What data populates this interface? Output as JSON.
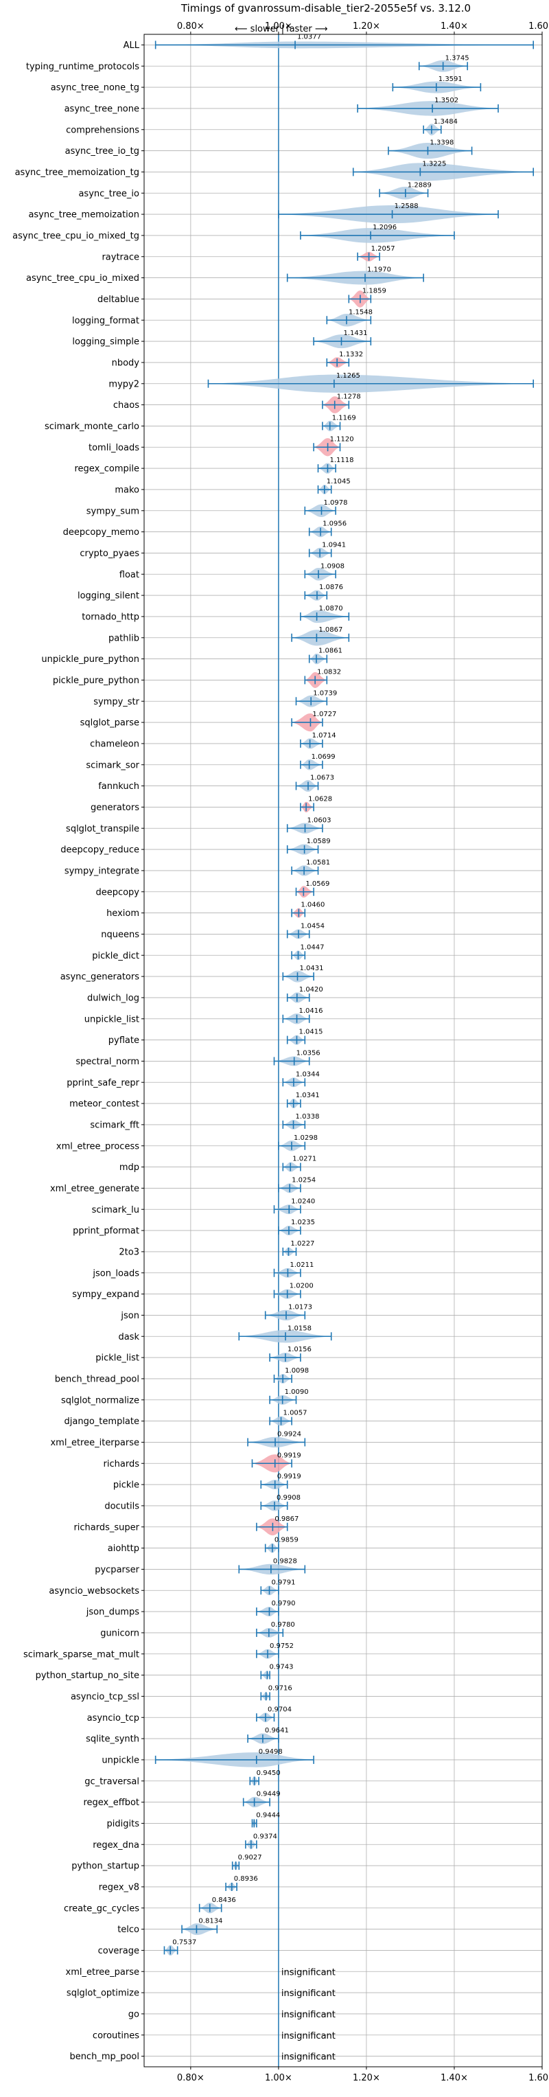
{
  "chart_data": {
    "type": "violin",
    "title": "Timings of gvanrossum-disable_tier2-2055e5f vs. 3.12.0",
    "subtitle_left": "⟵ slower",
    "subtitle_sep": "|",
    "subtitle_right": "faster ⟶",
    "x_range": [
      0.694,
      1.6
    ],
    "x_ticks": [
      {
        "value": 0.8,
        "label": "0.80×"
      },
      {
        "value": 1.0,
        "label": "1.00×"
      },
      {
        "value": 1.2,
        "label": "1.20×"
      },
      {
        "value": 1.4,
        "label": "1.40×"
      },
      {
        "value": 1.6,
        "label": "1.60×"
      }
    ],
    "reference_value": 1.0,
    "grid": true,
    "significance_colors": {
      "normal": "#1f77b4",
      "fill": "#b3cde3",
      "highlight": "#f4a6ae"
    },
    "insignificant_label": "insignificant",
    "benchmarks": [
      {
        "name": "ALL",
        "median": 1.0377,
        "label": "1.0377",
        "lo": 0.72,
        "hi": 1.58,
        "width": 0.32,
        "hl": false
      },
      {
        "name": "typing_runtime_protocols",
        "median": 1.3745,
        "label": "1.3745",
        "lo": 1.32,
        "hi": 1.43,
        "width": 0.55,
        "hl": false
      },
      {
        "name": "async_tree_none_tg",
        "median": 1.3591,
        "label": "1.3591",
        "lo": 1.26,
        "hi": 1.46,
        "width": 0.55,
        "hl": false
      },
      {
        "name": "async_tree_none",
        "median": 1.3502,
        "label": "1.3502",
        "lo": 1.18,
        "hi": 1.5,
        "width": 0.7,
        "hl": false
      },
      {
        "name": "comprehensions",
        "median": 1.3484,
        "label": "1.3484",
        "lo": 1.33,
        "hi": 1.37,
        "width": 0.55,
        "hl": false
      },
      {
        "name": "async_tree_io_tg",
        "median": 1.3398,
        "label": "1.3398",
        "lo": 1.25,
        "hi": 1.44,
        "width": 0.75,
        "hl": false
      },
      {
        "name": "async_tree_memoization_tg",
        "median": 1.3225,
        "label": "1.3225",
        "lo": 1.17,
        "hi": 1.58,
        "width": 0.85,
        "hl": false
      },
      {
        "name": "async_tree_io",
        "median": 1.2889,
        "label": "1.2889",
        "lo": 1.23,
        "hi": 1.34,
        "width": 0.6,
        "hl": false
      },
      {
        "name": "async_tree_memoization",
        "median": 1.2588,
        "label": "1.2588",
        "lo": 1.0,
        "hi": 1.5,
        "width": 0.85,
        "hl": false
      },
      {
        "name": "async_tree_cpu_io_mixed_tg",
        "median": 1.2096,
        "label": "1.2096",
        "lo": 1.05,
        "hi": 1.4,
        "width": 0.7,
        "hl": false
      },
      {
        "name": "raytrace",
        "median": 1.2057,
        "label": "1.2057",
        "lo": 1.18,
        "hi": 1.23,
        "width": 0.45,
        "hl": true
      },
      {
        "name": "async_tree_cpu_io_mixed",
        "median": 1.197,
        "label": "1.1970",
        "lo": 1.02,
        "hi": 1.33,
        "width": 0.65,
        "hl": false
      },
      {
        "name": "deltablue",
        "median": 1.1859,
        "label": "1.1859",
        "lo": 1.16,
        "hi": 1.21,
        "width": 0.8,
        "hl": true
      },
      {
        "name": "logging_format",
        "median": 1.1548,
        "label": "1.1548",
        "lo": 1.11,
        "hi": 1.21,
        "width": 0.6,
        "hl": false
      },
      {
        "name": "logging_simple",
        "median": 1.1431,
        "label": "1.1431",
        "lo": 1.08,
        "hi": 1.21,
        "width": 0.65,
        "hl": false
      },
      {
        "name": "nbody",
        "median": 1.1332,
        "label": "1.1332",
        "lo": 1.11,
        "hi": 1.16,
        "width": 0.5,
        "hl": true
      },
      {
        "name": "mypy2",
        "median": 1.1265,
        "label": "1.1265",
        "lo": 0.84,
        "hi": 1.58,
        "width": 0.85,
        "hl": false
      },
      {
        "name": "chaos",
        "median": 1.1278,
        "label": "1.1278",
        "lo": 1.1,
        "hi": 1.16,
        "width": 0.8,
        "hl": true
      },
      {
        "name": "scimark_monte_carlo",
        "median": 1.1169,
        "label": "1.1169",
        "lo": 1.1,
        "hi": 1.14,
        "width": 0.5,
        "hl": false
      },
      {
        "name": "tomli_loads",
        "median": 1.112,
        "label": "1.1120",
        "lo": 1.08,
        "hi": 1.14,
        "width": 0.85,
        "hl": true
      },
      {
        "name": "regex_compile",
        "median": 1.1118,
        "label": "1.1118",
        "lo": 1.09,
        "hi": 1.13,
        "width": 0.5,
        "hl": false
      },
      {
        "name": "mako",
        "median": 1.1045,
        "label": "1.1045",
        "lo": 1.09,
        "hi": 1.12,
        "width": 0.45,
        "hl": false
      },
      {
        "name": "sympy_sum",
        "median": 1.0978,
        "label": "1.0978",
        "lo": 1.06,
        "hi": 1.13,
        "width": 0.6,
        "hl": false
      },
      {
        "name": "deepcopy_memo",
        "median": 1.0956,
        "label": "1.0956",
        "lo": 1.07,
        "hi": 1.12,
        "width": 0.5,
        "hl": false
      },
      {
        "name": "crypto_pyaes",
        "median": 1.0941,
        "label": "1.0941",
        "lo": 1.07,
        "hi": 1.12,
        "width": 0.5,
        "hl": false
      },
      {
        "name": "float",
        "median": 1.0908,
        "label": "1.0908",
        "lo": 1.06,
        "hi": 1.13,
        "width": 0.6,
        "hl": false
      },
      {
        "name": "logging_silent",
        "median": 1.0876,
        "label": "1.0876",
        "lo": 1.06,
        "hi": 1.11,
        "width": 0.5,
        "hl": false
      },
      {
        "name": "tornado_http",
        "median": 1.087,
        "label": "1.0870",
        "lo": 1.05,
        "hi": 1.16,
        "width": 0.6,
        "hl": false
      },
      {
        "name": "pathlib",
        "median": 1.0867,
        "label": "1.0867",
        "lo": 1.03,
        "hi": 1.16,
        "width": 0.75,
        "hl": false
      },
      {
        "name": "unpickle_pure_python",
        "median": 1.0861,
        "label": "1.0861",
        "lo": 1.07,
        "hi": 1.11,
        "width": 0.5,
        "hl": false
      },
      {
        "name": "pickle_pure_python",
        "median": 1.0832,
        "label": "1.0832",
        "lo": 1.06,
        "hi": 1.11,
        "width": 0.75,
        "hl": true
      },
      {
        "name": "sympy_str",
        "median": 1.0739,
        "label": "1.0739",
        "lo": 1.04,
        "hi": 1.11,
        "width": 0.55,
        "hl": false
      },
      {
        "name": "sqlglot_parse",
        "median": 1.0727,
        "label": "1.0727",
        "lo": 1.03,
        "hi": 1.1,
        "width": 0.85,
        "hl": true
      },
      {
        "name": "chameleon",
        "median": 1.0714,
        "label": "1.0714",
        "lo": 1.05,
        "hi": 1.1,
        "width": 0.5,
        "hl": false
      },
      {
        "name": "scimark_sor",
        "median": 1.0699,
        "label": "1.0699",
        "lo": 1.05,
        "hi": 1.1,
        "width": 0.5,
        "hl": false
      },
      {
        "name": "fannkuch",
        "median": 1.0673,
        "label": "1.0673",
        "lo": 1.04,
        "hi": 1.09,
        "width": 0.55,
        "hl": false
      },
      {
        "name": "generators",
        "median": 1.0628,
        "label": "1.0628",
        "lo": 1.05,
        "hi": 1.08,
        "width": 0.5,
        "hl": true
      },
      {
        "name": "sqlglot_transpile",
        "median": 1.0603,
        "label": "1.0603",
        "lo": 1.02,
        "hi": 1.1,
        "width": 0.5,
        "hl": false
      },
      {
        "name": "deepcopy_reduce",
        "median": 1.0589,
        "label": "1.0589",
        "lo": 1.02,
        "hi": 1.09,
        "width": 0.5,
        "hl": false
      },
      {
        "name": "sympy_integrate",
        "median": 1.0581,
        "label": "1.0581",
        "lo": 1.03,
        "hi": 1.09,
        "width": 0.5,
        "hl": false
      },
      {
        "name": "deepcopy",
        "median": 1.0569,
        "label": "1.0569",
        "lo": 1.04,
        "hi": 1.08,
        "width": 0.55,
        "hl": true
      },
      {
        "name": "hexiom",
        "median": 1.046,
        "label": "1.0460",
        "lo": 1.03,
        "hi": 1.06,
        "width": 0.45,
        "hl": true
      },
      {
        "name": "nqueens",
        "median": 1.0454,
        "label": "1.0454",
        "lo": 1.02,
        "hi": 1.07,
        "width": 0.45,
        "hl": false
      },
      {
        "name": "pickle_dict",
        "median": 1.0447,
        "label": "1.0447",
        "lo": 1.03,
        "hi": 1.06,
        "width": 0.45,
        "hl": false
      },
      {
        "name": "async_generators",
        "median": 1.0431,
        "label": "1.0431",
        "lo": 1.01,
        "hi": 1.08,
        "width": 0.55,
        "hl": false
      },
      {
        "name": "dulwich_log",
        "median": 1.042,
        "label": "1.0420",
        "lo": 1.02,
        "hi": 1.07,
        "width": 0.5,
        "hl": false
      },
      {
        "name": "unpickle_list",
        "median": 1.0416,
        "label": "1.0416",
        "lo": 1.01,
        "hi": 1.07,
        "width": 0.5,
        "hl": false
      },
      {
        "name": "pyflate",
        "median": 1.0415,
        "label": "1.0415",
        "lo": 1.02,
        "hi": 1.06,
        "width": 0.45,
        "hl": false
      },
      {
        "name": "spectral_norm",
        "median": 1.0356,
        "label": "1.0356",
        "lo": 0.99,
        "hi": 1.07,
        "width": 0.45,
        "hl": false
      },
      {
        "name": "pprint_safe_repr",
        "median": 1.0344,
        "label": "1.0344",
        "lo": 1.01,
        "hi": 1.06,
        "width": 0.45,
        "hl": false
      },
      {
        "name": "meteor_contest",
        "median": 1.0341,
        "label": "1.0341",
        "lo": 1.02,
        "hi": 1.05,
        "width": 0.45,
        "hl": false
      },
      {
        "name": "scimark_fft",
        "median": 1.0338,
        "label": "1.0338",
        "lo": 1.01,
        "hi": 1.06,
        "width": 0.45,
        "hl": false
      },
      {
        "name": "xml_etree_process",
        "median": 1.0298,
        "label": "1.0298",
        "lo": 1.0,
        "hi": 1.06,
        "width": 0.5,
        "hl": false
      },
      {
        "name": "mdp",
        "median": 1.0271,
        "label": "1.0271",
        "lo": 1.01,
        "hi": 1.05,
        "width": 0.45,
        "hl": false
      },
      {
        "name": "xml_etree_generate",
        "median": 1.0254,
        "label": "1.0254",
        "lo": 1.0,
        "hi": 1.05,
        "width": 0.45,
        "hl": false
      },
      {
        "name": "scimark_lu",
        "median": 1.024,
        "label": "1.0240",
        "lo": 0.99,
        "hi": 1.05,
        "width": 0.45,
        "hl": false
      },
      {
        "name": "pprint_pformat",
        "median": 1.0235,
        "label": "1.0235",
        "lo": 1.0,
        "hi": 1.05,
        "width": 0.45,
        "hl": false
      },
      {
        "name": "2to3",
        "median": 1.0227,
        "label": "1.0227",
        "lo": 1.01,
        "hi": 1.04,
        "width": 0.4,
        "hl": false
      },
      {
        "name": "json_loads",
        "median": 1.0211,
        "label": "1.0211",
        "lo": 0.99,
        "hi": 1.05,
        "width": 0.45,
        "hl": false
      },
      {
        "name": "sympy_expand",
        "median": 1.02,
        "label": "1.0200",
        "lo": 0.99,
        "hi": 1.05,
        "width": 0.45,
        "hl": false
      },
      {
        "name": "json",
        "median": 1.0173,
        "label": "1.0173",
        "lo": 0.97,
        "hi": 1.06,
        "width": 0.5,
        "hl": false
      },
      {
        "name": "dask",
        "median": 1.0158,
        "label": "1.0158",
        "lo": 0.91,
        "hi": 1.12,
        "width": 0.6,
        "hl": false
      },
      {
        "name": "pickle_list",
        "median": 1.0156,
        "label": "1.0156",
        "lo": 0.98,
        "hi": 1.05,
        "width": 0.45,
        "hl": false
      },
      {
        "name": "bench_thread_pool",
        "median": 1.0098,
        "label": "1.0098",
        "lo": 0.99,
        "hi": 1.03,
        "width": 0.45,
        "hl": false
      },
      {
        "name": "sqlglot_normalize",
        "median": 1.009,
        "label": "1.0090",
        "lo": 0.98,
        "hi": 1.04,
        "width": 0.45,
        "hl": false
      },
      {
        "name": "django_template",
        "median": 1.0057,
        "label": "1.0057",
        "lo": 0.98,
        "hi": 1.03,
        "width": 0.45,
        "hl": false
      },
      {
        "name": "xml_etree_iterparse",
        "median": 0.9924,
        "label": "0.9924",
        "lo": 0.93,
        "hi": 1.06,
        "width": 0.5,
        "hl": false
      },
      {
        "name": "richards",
        "median": 0.9919,
        "label": "0.9919",
        "lo": 0.94,
        "hi": 1.03,
        "width": 0.85,
        "hl": true
      },
      {
        "name": "pickle",
        "median": 0.9919,
        "label": "0.9919",
        "lo": 0.96,
        "hi": 1.02,
        "width": 0.45,
        "hl": false
      },
      {
        "name": "docutils",
        "median": 0.9908,
        "label": "0.9908",
        "lo": 0.96,
        "hi": 1.02,
        "width": 0.5,
        "hl": false
      },
      {
        "name": "richards_super",
        "median": 0.9867,
        "label": "0.9867",
        "lo": 0.95,
        "hi": 1.02,
        "width": 0.8,
        "hl": true
      },
      {
        "name": "aiohttp",
        "median": 0.9859,
        "label": "0.9859",
        "lo": 0.97,
        "hi": 1.0,
        "width": 0.45,
        "hl": false
      },
      {
        "name": "pycparser",
        "median": 0.9828,
        "label": "0.9828",
        "lo": 0.91,
        "hi": 1.06,
        "width": 0.5,
        "hl": false
      },
      {
        "name": "asyncio_websockets",
        "median": 0.9791,
        "label": "0.9791",
        "lo": 0.96,
        "hi": 1.0,
        "width": 0.45,
        "hl": false
      },
      {
        "name": "json_dumps",
        "median": 0.979,
        "label": "0.9790",
        "lo": 0.95,
        "hi": 1.0,
        "width": 0.45,
        "hl": false
      },
      {
        "name": "gunicorn",
        "median": 0.978,
        "label": "0.9780",
        "lo": 0.95,
        "hi": 1.01,
        "width": 0.45,
        "hl": false
      },
      {
        "name": "scimark_sparse_mat_mult",
        "median": 0.9752,
        "label": "0.9752",
        "lo": 0.95,
        "hi": 1.0,
        "width": 0.45,
        "hl": false
      },
      {
        "name": "python_startup_no_site",
        "median": 0.9743,
        "label": "0.9743",
        "lo": 0.96,
        "hi": 0.98,
        "width": 0.4,
        "hl": false
      },
      {
        "name": "asyncio_tcp_ssl",
        "median": 0.9716,
        "label": "0.9716",
        "lo": 0.96,
        "hi": 0.98,
        "width": 0.4,
        "hl": false
      },
      {
        "name": "asyncio_tcp",
        "median": 0.9704,
        "label": "0.9704",
        "lo": 0.95,
        "hi": 0.99,
        "width": 0.45,
        "hl": false
      },
      {
        "name": "sqlite_synth",
        "median": 0.9641,
        "label": "0.9641",
        "lo": 0.93,
        "hi": 1.0,
        "width": 0.5,
        "hl": false
      },
      {
        "name": "unpickle",
        "median": 0.9498,
        "label": "0.9498",
        "lo": 0.72,
        "hi": 1.08,
        "width": 0.7,
        "hl": false
      },
      {
        "name": "gc_traversal",
        "median": 0.945,
        "label": "0.9450",
        "lo": 0.935,
        "hi": 0.955,
        "width": 0.45,
        "hl": false
      },
      {
        "name": "regex_effbot",
        "median": 0.9449,
        "label": "0.9449",
        "lo": 0.92,
        "hi": 0.98,
        "width": 0.5,
        "hl": false
      },
      {
        "name": "pidigits",
        "median": 0.9444,
        "label": "0.9444",
        "lo": 0.94,
        "hi": 0.95,
        "width": 0.4,
        "hl": false
      },
      {
        "name": "regex_dna",
        "median": 0.9374,
        "label": "0.9374",
        "lo": 0.925,
        "hi": 0.95,
        "width": 0.45,
        "hl": false
      },
      {
        "name": "python_startup",
        "median": 0.9027,
        "label": "0.9027",
        "lo": 0.895,
        "hi": 0.91,
        "width": 0.4,
        "hl": false
      },
      {
        "name": "regex_v8",
        "median": 0.8936,
        "label": "0.8936",
        "lo": 0.88,
        "hi": 0.905,
        "width": 0.4,
        "hl": false
      },
      {
        "name": "create_gc_cycles",
        "median": 0.8436,
        "label": "0.8436",
        "lo": 0.82,
        "hi": 0.87,
        "width": 0.5,
        "hl": false
      },
      {
        "name": "telco",
        "median": 0.8134,
        "label": "0.8134",
        "lo": 0.78,
        "hi": 0.86,
        "width": 0.55,
        "hl": false
      },
      {
        "name": "coverage",
        "median": 0.7537,
        "label": "0.7537",
        "lo": 0.74,
        "hi": 0.77,
        "width": 0.5,
        "hl": false
      },
      {
        "name": "xml_etree_parse",
        "insignificant": true
      },
      {
        "name": "sqlglot_optimize",
        "insignificant": true
      },
      {
        "name": "go",
        "insignificant": true
      },
      {
        "name": "coroutines",
        "insignificant": true
      },
      {
        "name": "bench_mp_pool",
        "insignificant": true
      }
    ]
  }
}
